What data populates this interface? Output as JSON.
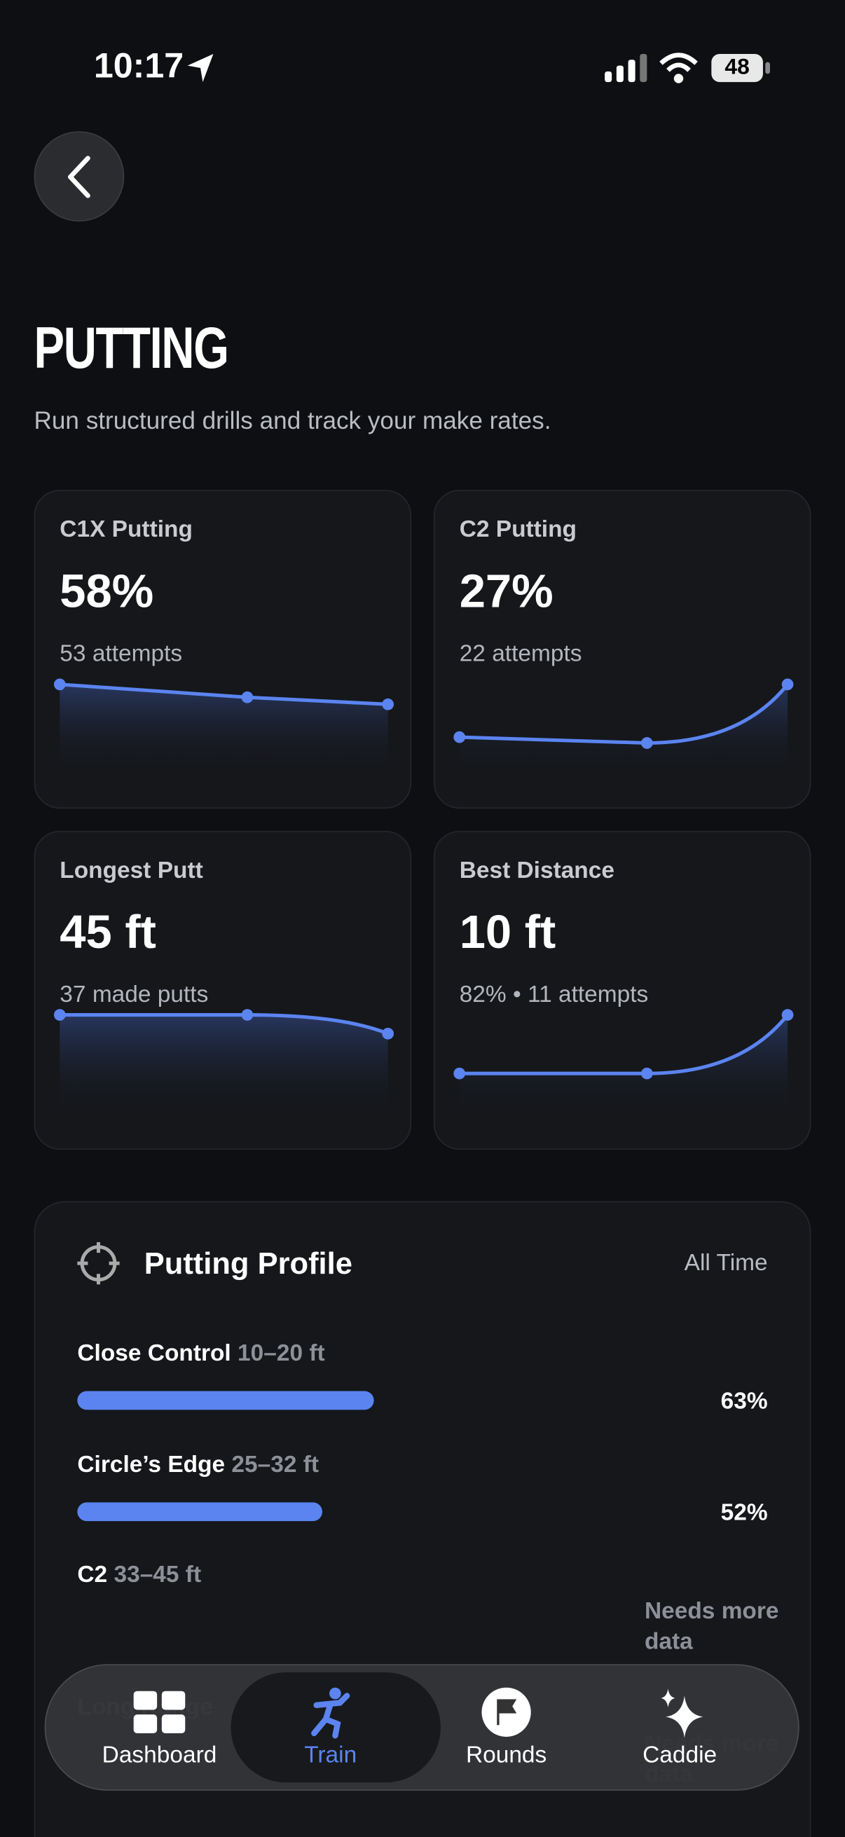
{
  "status_bar": {
    "time": "10:17",
    "battery": "48"
  },
  "header": {
    "title": "PUTTING",
    "subtitle": "Run structured drills and track your make rates."
  },
  "cards": [
    {
      "label": "C1X Putting",
      "value": "58%",
      "sub": "53 attempts"
    },
    {
      "label": "C2 Putting",
      "value": "27%",
      "sub": "22 attempts"
    },
    {
      "label": "Longest Putt",
      "value": "45 ft",
      "sub": "37 made putts"
    },
    {
      "label": "Best Distance",
      "value": "10 ft",
      "sub": "82% • 11 attempts"
    }
  ],
  "profile": {
    "title": "Putting Profile",
    "period": "All Time",
    "rows": [
      {
        "name": "Close Control",
        "range": "10–20 ft",
        "value": 63,
        "value_label": "63%"
      },
      {
        "name": "Circle’s Edge",
        "range": "25–32 ft",
        "value": 52,
        "value_label": "52%"
      },
      {
        "name": "C2",
        "range": "33–45 ft",
        "status": "Needs more data"
      },
      {
        "name": "Long Range",
        "status": "Needs more data"
      }
    ]
  },
  "nav": {
    "items": [
      "Dashboard",
      "Train",
      "Rounds",
      "Caddie"
    ],
    "active": 1
  }
}
